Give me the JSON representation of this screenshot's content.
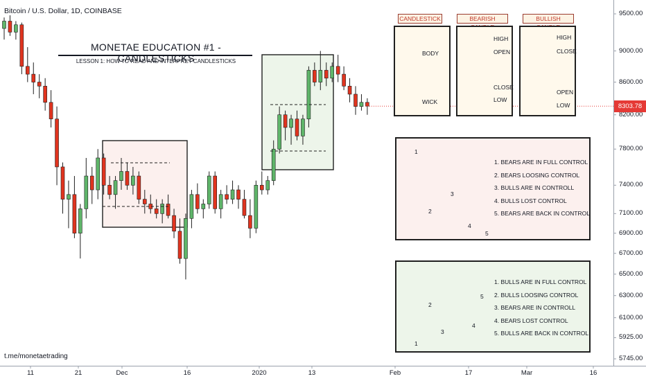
{
  "header": {
    "symbol_title": "Bitcoin / U.S. Dollar, 1D, COINBASE"
  },
  "footer": {
    "link_text": "t.me/monetaetrading"
  },
  "lesson": {
    "title": "MONETAE EDUCATION #1 - CANDLESTICKS",
    "subtitle": "LESSON 1: HOW TO READ AND INTERPRET CANDLESTICKS"
  },
  "legend_panels": {
    "candlestick": {
      "tag": "CANDLESTICK",
      "body_label": "BODY",
      "wick_label": "WICK"
    },
    "bearish": {
      "tag": "BEARISH CANDLE",
      "high": "HIGH",
      "open": "OPEN",
      "close": "CLOSE",
      "low": "LOW"
    },
    "bullish": {
      "tag": "BULLISH CANDLE",
      "high": "HIGH",
      "close": "CLOSE",
      "open": "OPEN",
      "low": "LOW"
    }
  },
  "bearish_pattern": {
    "items": [
      "1. BEARS ARE IN FULL CONTROL",
      "2. BEARS LOOSING CONTROL",
      "3. BULLS ARE IN CONTROLL",
      "4. BULLS LOST CONTROL",
      "5. BEARS ARE BACK IN CONTROL"
    ],
    "markers": [
      "1",
      "2",
      "3",
      "4",
      "5"
    ]
  },
  "bullish_pattern": {
    "items": [
      "1. BULLS ARE IN FULL CONTROL",
      "2. BULLS LOOSING CONTROL",
      "3. BEARS ARE IN CONTROLL",
      "4. BEARS LOST CONTROL",
      "5. BULLS ARE BACK IN CONTROL"
    ],
    "markers": [
      "1",
      "2",
      "3",
      "4",
      "5"
    ]
  },
  "colors": {
    "up": "#5fb56a",
    "down": "#e0341f",
    "last_price_badge": "#e53935",
    "pink_box": "#fcf0ee",
    "green_box": "#edf5ea",
    "cream_box": "#fff9ec"
  },
  "price_axis": {
    "ticks": [
      "9500.00",
      "9000.00",
      "8600.00",
      "8200.00",
      "7800.00",
      "7400.00",
      "7100.00",
      "6900.00",
      "6700.00",
      "6500.00",
      "6300.00",
      "6100.00",
      "5925.00",
      "5745.00"
    ],
    "last_price": "8303.78"
  },
  "time_axis": {
    "ticks": [
      "11",
      "21",
      "Dec",
      "16",
      "2020",
      "13",
      "Feb",
      "17",
      "Mar",
      "16"
    ]
  },
  "chart_data": {
    "type": "candlestick",
    "title": "Bitcoin / U.S. Dollar, 1D, COINBASE",
    "xlabel": "",
    "ylabel": "",
    "ylim": [
      5745,
      9650
    ],
    "y_scale": "log",
    "candles": [
      [
        9300,
        9450,
        9150,
        9400
      ],
      [
        9400,
        9480,
        9200,
        9250
      ],
      [
        9250,
        9400,
        9150,
        9350
      ],
      [
        9350,
        9380,
        8700,
        8800
      ],
      [
        8800,
        9050,
        8600,
        8700
      ],
      [
        8700,
        8850,
        8450,
        8600
      ],
      [
        8600,
        8700,
        8400,
        8550
      ],
      [
        8550,
        8650,
        8250,
        8350
      ],
      [
        8350,
        8500,
        8050,
        8150
      ],
      [
        8150,
        8300,
        7400,
        7600
      ],
      [
        7600,
        7650,
        7100,
        7250
      ],
      [
        7250,
        7450,
        6950,
        7300
      ],
      [
        7300,
        7500,
        6850,
        6900
      ],
      [
        6900,
        7200,
        6650,
        7150
      ],
      [
        7150,
        7700,
        7050,
        7500
      ],
      [
        7500,
        7600,
        7200,
        7350
      ],
      [
        7350,
        7800,
        7250,
        7700
      ],
      [
        7700,
        7750,
        7300,
        7400
      ],
      [
        7400,
        7500,
        7250,
        7300
      ],
      [
        7300,
        7500,
        7150,
        7450
      ],
      [
        7450,
        7700,
        7350,
        7550
      ],
      [
        7550,
        7650,
        7350,
        7400
      ],
      [
        7400,
        7600,
        7300,
        7500
      ],
      [
        7500,
        7550,
        7200,
        7250
      ],
      [
        7250,
        7350,
        7100,
        7200
      ],
      [
        7200,
        7300,
        7100,
        7150
      ],
      [
        7150,
        7250,
        7050,
        7100
      ],
      [
        7100,
        7250,
        7000,
        7200
      ],
      [
        7200,
        7300,
        7050,
        7080
      ],
      [
        7080,
        7150,
        6850,
        6920
      ],
      [
        6920,
        7050,
        6600,
        6650
      ],
      [
        6650,
        7100,
        6450,
        7050
      ],
      [
        7050,
        7350,
        6950,
        7300
      ],
      [
        7300,
        7420,
        7100,
        7150
      ],
      [
        7150,
        7250,
        7050,
        7200
      ],
      [
        7200,
        7550,
        7150,
        7500
      ],
      [
        7500,
        7550,
        7100,
        7150
      ],
      [
        7150,
        7350,
        7050,
        7300
      ],
      [
        7300,
        7400,
        7200,
        7250
      ],
      [
        7250,
        7450,
        7200,
        7350
      ],
      [
        7350,
        7400,
        7150,
        7250
      ],
      [
        7250,
        7350,
        7050,
        7080
      ],
      [
        7080,
        7250,
        6850,
        6950
      ],
      [
        6950,
        7450,
        6900,
        7400
      ],
      [
        7400,
        7550,
        7300,
        7350
      ],
      [
        7350,
        7500,
        7300,
        7450
      ],
      [
        7450,
        7900,
        7400,
        7800
      ],
      [
        7800,
        8300,
        7750,
        8200
      ],
      [
        8200,
        8250,
        7900,
        8050
      ],
      [
        8050,
        8200,
        7850,
        8150
      ],
      [
        8150,
        8250,
        7900,
        7950
      ],
      [
        7950,
        8200,
        7850,
        8150
      ],
      [
        8150,
        8800,
        8050,
        8750
      ],
      [
        8750,
        8850,
        8550,
        8600
      ],
      [
        8600,
        9000,
        8500,
        8750
      ],
      [
        8750,
        8850,
        8550,
        8650
      ],
      [
        8650,
        8850,
        8600,
        8800
      ],
      [
        8800,
        8950,
        8600,
        8700
      ],
      [
        8700,
        8800,
        8500,
        8550
      ],
      [
        8550,
        8650,
        8350,
        8450
      ],
      [
        8450,
        8550,
        8200,
        8300
      ],
      [
        8300,
        8450,
        8250,
        8350
      ],
      [
        8350,
        8400,
        8200,
        8304
      ]
    ]
  }
}
